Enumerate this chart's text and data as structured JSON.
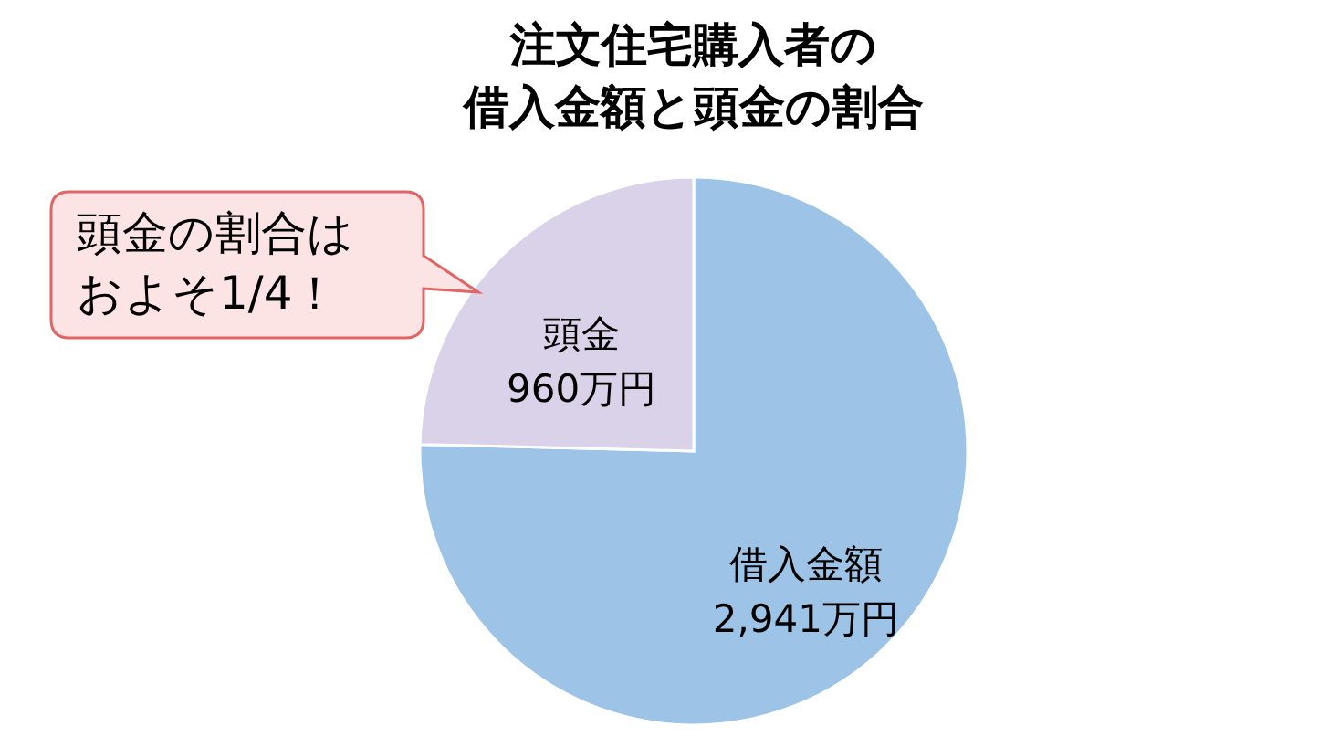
{
  "chart_data": {
    "type": "pie",
    "title": "注文住宅購入者の借入金額と頭金の割合",
    "categories": [
      "借入金額",
      "頭金"
    ],
    "values": [
      2941,
      960
    ],
    "value_labels": [
      "2,941万円",
      "960万円"
    ],
    "colors": [
      "#9dc3e6",
      "#d9d2e9"
    ],
    "annotations": [
      "頭金の割合はおよそ1/4！"
    ]
  }
}
